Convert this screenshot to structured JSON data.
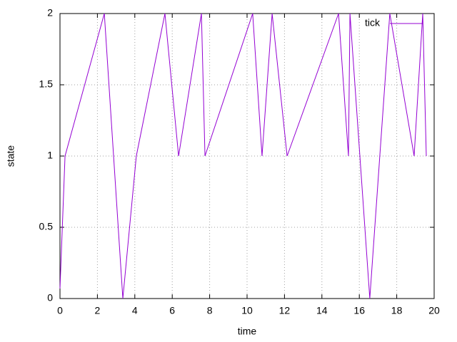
{
  "chart_data": {
    "type": "line",
    "xlabel": "time",
    "ylabel": "state",
    "xlim": [
      0,
      20
    ],
    "ylim": [
      0,
      2
    ],
    "xticks": [
      0,
      2,
      4,
      6,
      8,
      10,
      12,
      14,
      16,
      18,
      20
    ],
    "yticks": [
      0,
      0.5,
      1,
      1.5,
      2
    ],
    "grid": true,
    "legend": "top-right",
    "series": [
      {
        "name": "tick",
        "color": "#9400d3",
        "x": [
          0,
          0.27,
          2.37,
          3.36,
          4.08,
          5.61,
          6.34,
          7.56,
          7.75,
          10.3,
          10.8,
          11.34,
          12.14,
          14.89,
          15.42,
          15.5,
          16.56,
          17.63,
          18.93,
          19.39,
          19.58
        ],
        "values": [
          0.07,
          1,
          2,
          0,
          1,
          2,
          1,
          2,
          1,
          2,
          1,
          2,
          1,
          2,
          1,
          2,
          0,
          2,
          1,
          2,
          1
        ]
      }
    ]
  }
}
